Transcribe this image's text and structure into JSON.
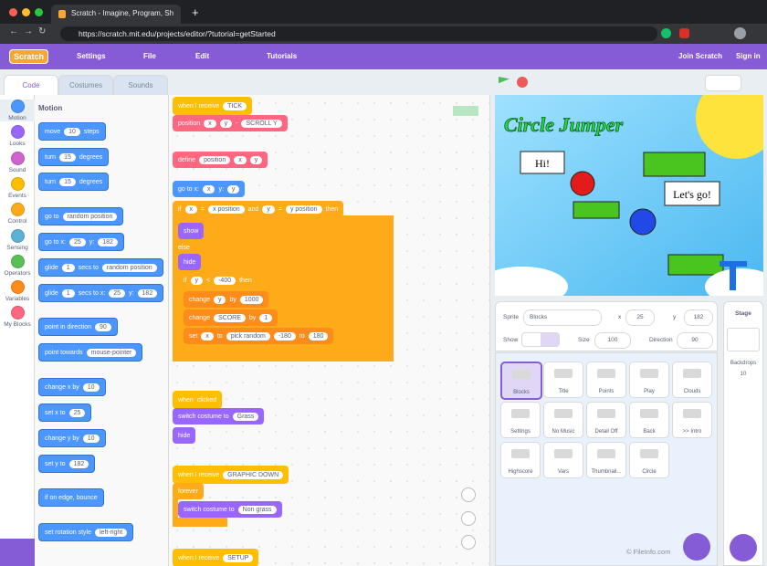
{
  "browser": {
    "tab_title": "Scratch - Imagine, Program, Sh",
    "url": "https://scratch.mit.edu/projects/editor/?tutorial=getStarted"
  },
  "menu": {
    "logo": "Scratch",
    "settings": "Settings",
    "file": "File",
    "edit": "Edit",
    "tutorials": "Tutorials",
    "join": "Join Scratch",
    "sign_in": "Sign in"
  },
  "tabs": [
    "Code",
    "Costumes",
    "Sounds"
  ],
  "categories": [
    "Motion",
    "Looks",
    "Sound",
    "Events",
    "Control",
    "Sensing",
    "Operators",
    "Variables",
    "My Blocks"
  ],
  "palette": {
    "heading": "Motion",
    "blocks": [
      [
        "move",
        10,
        "steps"
      ],
      [
        "turn",
        15,
        "degrees"
      ],
      [
        "turn",
        15,
        "degrees"
      ],
      [
        "go to",
        "random position"
      ],
      [
        "go to x:",
        25,
        "y:",
        182
      ],
      [
        "glide",
        1,
        "secs to",
        "random position"
      ],
      [
        "glide",
        1,
        "secs to x:",
        25,
        "y:",
        182
      ],
      [
        "point in direction",
        90
      ],
      [
        "point towards",
        "mouse-pointer"
      ],
      [
        "change x by",
        10
      ],
      [
        "set x to",
        25
      ],
      [
        "change y by",
        10
      ],
      [
        "set y to",
        182
      ],
      [
        "if on edge, bounce"
      ],
      [
        "set rotation style",
        "left-right"
      ]
    ]
  },
  "scripts": [
    [
      [
        "when I receive",
        "TICK"
      ],
      [
        "position",
        "x",
        "y",
        "-",
        "SCROLL Y"
      ]
    ],
    [
      [
        "define",
        "position",
        "x",
        "y"
      ],
      [
        "go to x:",
        "x",
        "y:",
        "y"
      ],
      [
        "if",
        "x",
        "=",
        "x position",
        "and",
        "y",
        "=",
        "y position",
        "then"
      ],
      [
        "show"
      ],
      [
        "else"
      ],
      [
        "hide"
      ],
      [
        "if",
        "y",
        "<",
        -400,
        "then"
      ],
      [
        "change",
        "y",
        "by",
        1000
      ],
      [
        "change",
        "SCORE",
        "by",
        1
      ],
      [
        "set",
        "x",
        "to",
        "pick random",
        -180,
        "to",
        180
      ]
    ],
    [
      [
        "when",
        "clicked"
      ],
      [
        "switch costume to",
        "Grass"
      ],
      [
        "hide"
      ]
    ],
    [
      [
        "when I receive",
        "GRAPHIC DOWN"
      ],
      [
        "forever"
      ],
      [
        "switch costume to",
        "Non grass"
      ]
    ],
    [
      [
        "when I receive",
        "SETUP"
      ]
    ]
  ],
  "stage": {
    "title": "Circle Jumper",
    "bubble1": "Hi!",
    "bubble2": "Let's go!"
  },
  "sprite_info": {
    "sprite_label": "Sprite",
    "sprite_name": "Blocks",
    "x_label": "x",
    "x": 25,
    "y_label": "y",
    "y": 182,
    "show_label": "Show",
    "size_label": "Size",
    "size": 100,
    "direction_label": "Direction",
    "direction": 90
  },
  "sprites": [
    "Blocks",
    "Title",
    "Points",
    "Play",
    "Clouds",
    "Settings",
    "No Music",
    "Detail Off",
    "Back",
    ">> Intro",
    "Highscore",
    "Vars",
    "Thumbnail...",
    "Circle"
  ],
  "stage_panel": {
    "title": "Stage",
    "backdrops_label": "Backdrops",
    "backdrops": 10
  },
  "watermark": "© FileInfo.com"
}
